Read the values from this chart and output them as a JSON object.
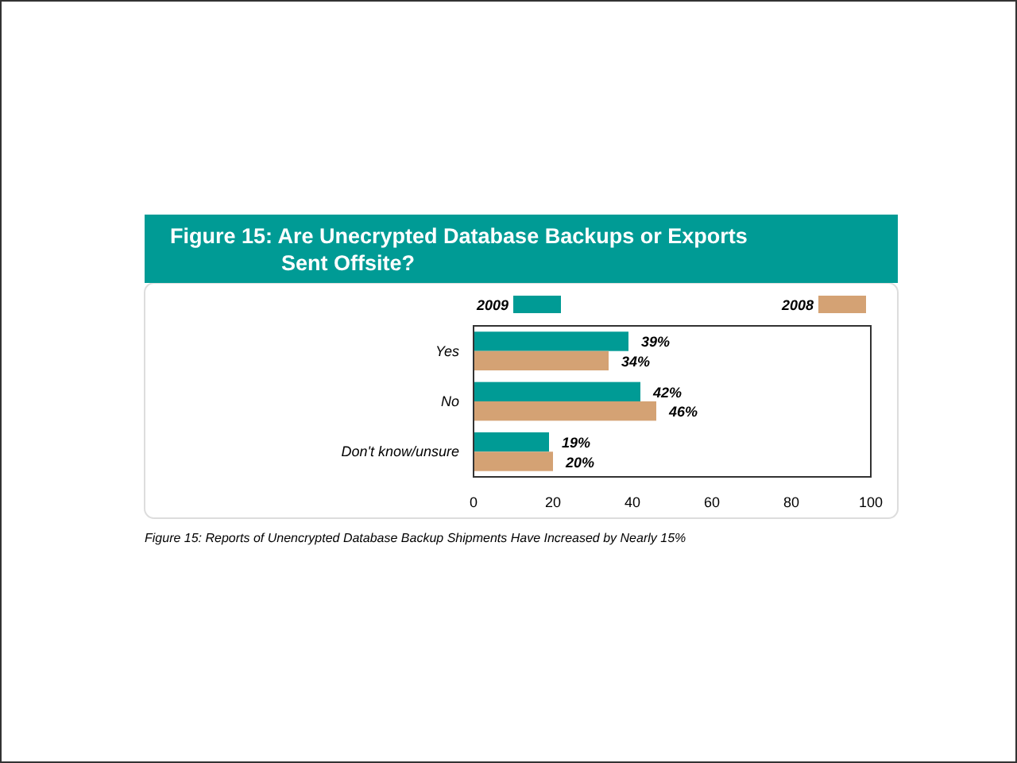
{
  "chart_data": {
    "type": "bar",
    "orientation": "horizontal",
    "title": "Figure 15:  Are Unecrypted Database Backups or Exports Sent Offsite?",
    "categories": [
      "Yes",
      "No",
      "Don't know/unsure"
    ],
    "series": [
      {
        "name": "2009",
        "color": "#009b95",
        "values": [
          39,
          42,
          19
        ],
        "value_labels": [
          "39%",
          "42%",
          "19%"
        ]
      },
      {
        "name": "2008",
        "color": "#d4a274",
        "values": [
          34,
          46,
          20
        ],
        "value_labels": [
          "34%",
          "46%",
          "20%"
        ]
      }
    ],
    "xlim": [
      0,
      100
    ],
    "xticks": [
      0,
      20,
      40,
      60,
      80,
      100
    ],
    "legend": "top",
    "grid": false,
    "annotations": [
      "Figure 15: Reports of Unencrypted Database Backup Shipments Have Increased by Nearly 15%"
    ]
  }
}
